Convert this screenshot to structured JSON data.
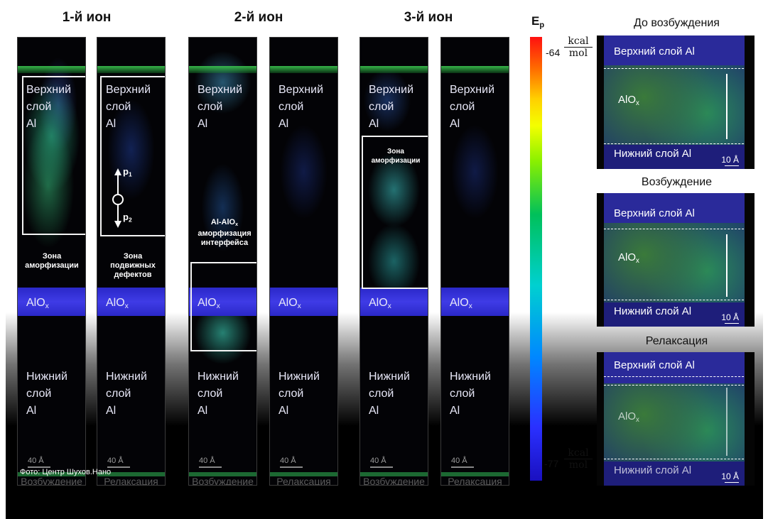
{
  "ions": [
    "1-й ион",
    "2-й ион",
    "3-й ион"
  ],
  "col_caption_excite": "Возбуждение",
  "col_caption_relax": "Релаксация",
  "top_layer": [
    "Верхний",
    "слой",
    "Al"
  ],
  "bottom_layer": [
    "Нижний",
    "слой",
    "Al"
  ],
  "alox": "AlO",
  "alox_sub": "x",
  "scale": "40 Å",
  "zone_amorph": [
    "Зона",
    "аморфизации"
  ],
  "zone_defects": [
    "Зона",
    "подвижных",
    "дефектов"
  ],
  "interface": [
    "Al-AlO",
    "x",
    "аморфизация",
    "интерфейса"
  ],
  "p1": "p",
  "p1_sub": "1",
  "p2": "p",
  "p2_sub": "2",
  "credit": "Фото: Центр Шухов.Нано",
  "colorbar": {
    "label": "E",
    "label_sub": "p",
    "max": "-64",
    "min": "-77",
    "unit_num": "kcal",
    "unit_den": "mol"
  },
  "panels": [
    {
      "title": "До возбуждения",
      "top": "Верхний слой Al",
      "mid": "AlO",
      "mid_sub": "x",
      "bottom": "Нижний слой Al",
      "scale": "10 Å"
    },
    {
      "title": "Возбуждение",
      "top": "Верхний слой Al",
      "mid": "AlO",
      "mid_sub": "x",
      "bottom": "Нижний слой Al",
      "scale": "10 Å"
    },
    {
      "title": "Релаксация",
      "top": "Верхний слой Al",
      "mid": "AlO",
      "mid_sub": "x",
      "bottom": "Нижний слой Al",
      "scale": "10 Å"
    }
  ],
  "colors": {
    "alox_band": "#3a36e0",
    "box": "#f4f4f4",
    "background": "#000000"
  }
}
